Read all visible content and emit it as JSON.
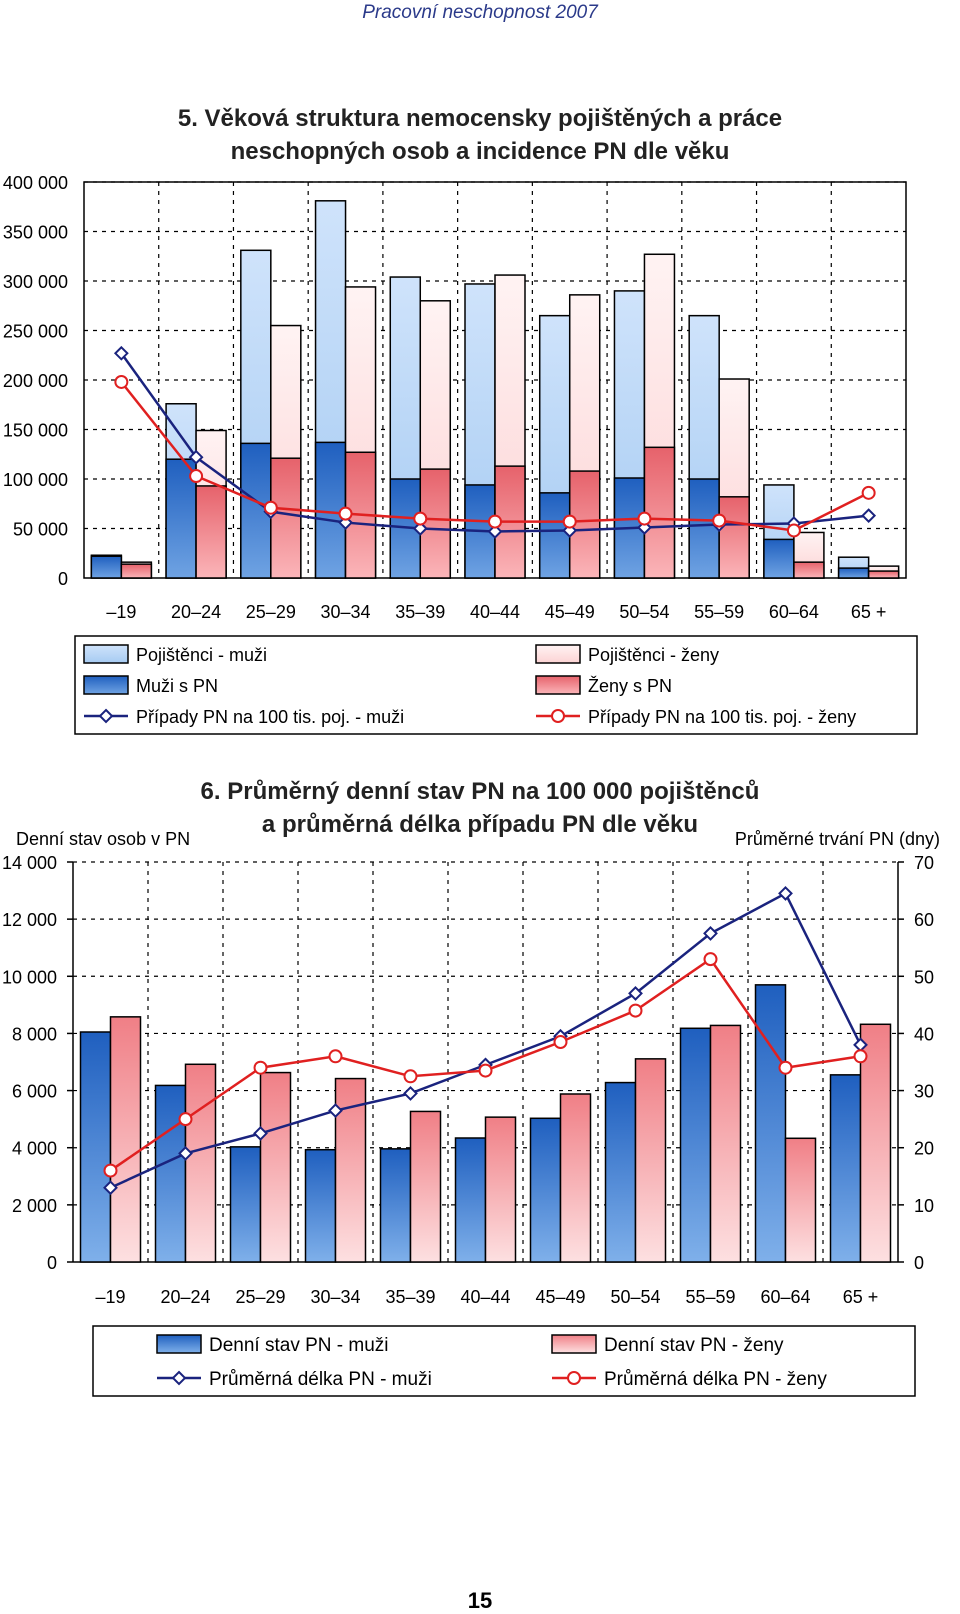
{
  "header": "Pracovní neschopnost 2007",
  "page_number": "15",
  "chart_data": [
    {
      "type": "bar",
      "title_line1": "5. Věková struktura nemocensky pojištěných a práce",
      "title_line2": "neschopných osob a incidence PN dle věku",
      "categories": [
        "–19",
        "20–24",
        "25–29",
        "30–34",
        "35–39",
        "40–44",
        "45–49",
        "50–54",
        "55–59",
        "60–64",
        "65 +"
      ],
      "yticks": [
        "0",
        "50 000",
        "100 000",
        "150 000",
        "200 000",
        "250 000",
        "300 000",
        "350 000",
        "400 000"
      ],
      "ylim": [
        0,
        400000
      ],
      "series": [
        {
          "name": "Pojištěnci - muži",
          "kind": "bar",
          "group": "m",
          "values": [
            23000,
            176000,
            331000,
            381000,
            304000,
            297000,
            265000,
            290000,
            265000,
            94000,
            21000
          ]
        },
        {
          "name": "Muži s PN",
          "kind": "bar-inner",
          "group": "m",
          "values": [
            22000,
            120000,
            136000,
            137000,
            100000,
            94000,
            86000,
            101000,
            100000,
            39000,
            10000
          ]
        },
        {
          "name": "Pojištěnci - ženy",
          "kind": "bar",
          "group": "f",
          "values": [
            16000,
            149000,
            255000,
            294000,
            280000,
            306000,
            286000,
            327000,
            201000,
            46000,
            12000
          ]
        },
        {
          "name": "Ženy s PN",
          "kind": "bar-inner",
          "group": "f",
          "values": [
            14000,
            93000,
            121000,
            127000,
            110000,
            113000,
            108000,
            132000,
            82000,
            16000,
            7000
          ]
        },
        {
          "name": "Případy PN na 100 tis. poj. - muži",
          "kind": "line",
          "values": [
            227000,
            122000,
            67000,
            56000,
            50000,
            47000,
            48000,
            51000,
            54000,
            55000,
            63000
          ]
        },
        {
          "name": "Případy PN na 100 tis. poj. - ženy",
          "kind": "line",
          "values": [
            198000,
            103000,
            71000,
            65000,
            60000,
            57000,
            57000,
            60000,
            58000,
            48000,
            86000
          ]
        }
      ],
      "colors": {
        "male_light": "#a6cbf2",
        "male_dark": "#2e6fc9",
        "female_light": "#fcd3d4",
        "female_dark": "#ef8087",
        "male_line": "#1a237e",
        "female_line": "#e02020"
      },
      "grid": true,
      "legend": [
        {
          "label": "Pojištěnci - muži",
          "swatch": "bar",
          "color": "#a6cbf2"
        },
        {
          "label": "Pojištěnci - ženy",
          "swatch": "bar",
          "color": "#fcd3d4"
        },
        {
          "label": "Muži s PN",
          "swatch": "bar",
          "color": "#2e6fc9"
        },
        {
          "label": "Ženy s PN",
          "swatch": "bar",
          "color": "#ef8087"
        },
        {
          "label": "Případy PN na 100 tis. poj. - muži",
          "swatch": "line-diamond",
          "color": "#1a237e"
        },
        {
          "label": "Případy PN na 100 tis. poj. - ženy",
          "swatch": "line-circle",
          "color": "#e02020"
        }
      ],
      "legend_position": "bottom"
    },
    {
      "type": "bar",
      "title_line1": "6. Průměrný denní stav PN na 100 000 pojištěnců",
      "title_line2": "a průměrná délka případu PN dle věku",
      "ylabel_left": "Denní stav osob v PN",
      "ylabel_right": "Průměrné trvání PN (dny)",
      "categories": [
        "–19",
        "20–24",
        "25–29",
        "30–34",
        "35–39",
        "40–44",
        "45–49",
        "50–54",
        "55–59",
        "60–64",
        "65 +"
      ],
      "yticks_left": [
        "0",
        "2 000",
        "4 000",
        "6 000",
        "8 000",
        "10 000",
        "12 000",
        "14 000"
      ],
      "yticks_right": [
        "0",
        "10",
        "20",
        "30",
        "40",
        "50",
        "60",
        "70"
      ],
      "ylim_left": [
        0,
        14000
      ],
      "ylim_right": [
        0,
        70
      ],
      "series": [
        {
          "name": "Denní stav PN - muži",
          "kind": "bar",
          "axis": "left",
          "values": [
            8050,
            6180,
            4030,
            3930,
            3960,
            4340,
            5030,
            6280,
            8180,
            9700,
            6550
          ]
        },
        {
          "name": "Denní stav PN - ženy",
          "kind": "bar",
          "axis": "left",
          "values": [
            8580,
            6920,
            6630,
            6420,
            5270,
            5070,
            5880,
            7110,
            8280,
            4330,
            8320
          ]
        },
        {
          "name": "Průměrná délka PN - muži",
          "kind": "line",
          "axis": "right",
          "values": [
            13,
            19,
            22.5,
            26.5,
            29.5,
            34.5,
            39.5,
            47,
            57.5,
            64.5,
            38
          ]
        },
        {
          "name": "Průměrná délka PN - ženy",
          "kind": "line",
          "axis": "right",
          "values": [
            16,
            25,
            34,
            36,
            32.5,
            33.5,
            38.5,
            44,
            53,
            34,
            36
          ]
        }
      ],
      "colors": {
        "male_bar": "#2e6fc9",
        "female_bar": "#fba3a8",
        "male_line": "#1a237e",
        "female_line": "#e02020"
      },
      "grid": true,
      "legend": [
        {
          "label": "Denní stav PN - muži",
          "swatch": "bar",
          "color": "#2e6fc9"
        },
        {
          "label": "Denní stav PN - ženy",
          "swatch": "bar",
          "color": "#fba3a8"
        },
        {
          "label": "Průměrná délka PN - muži",
          "swatch": "line-diamond",
          "color": "#1a237e"
        },
        {
          "label": "Průměrná délka PN - ženy",
          "swatch": "line-circle",
          "color": "#e02020"
        }
      ],
      "legend_position": "bottom"
    }
  ]
}
